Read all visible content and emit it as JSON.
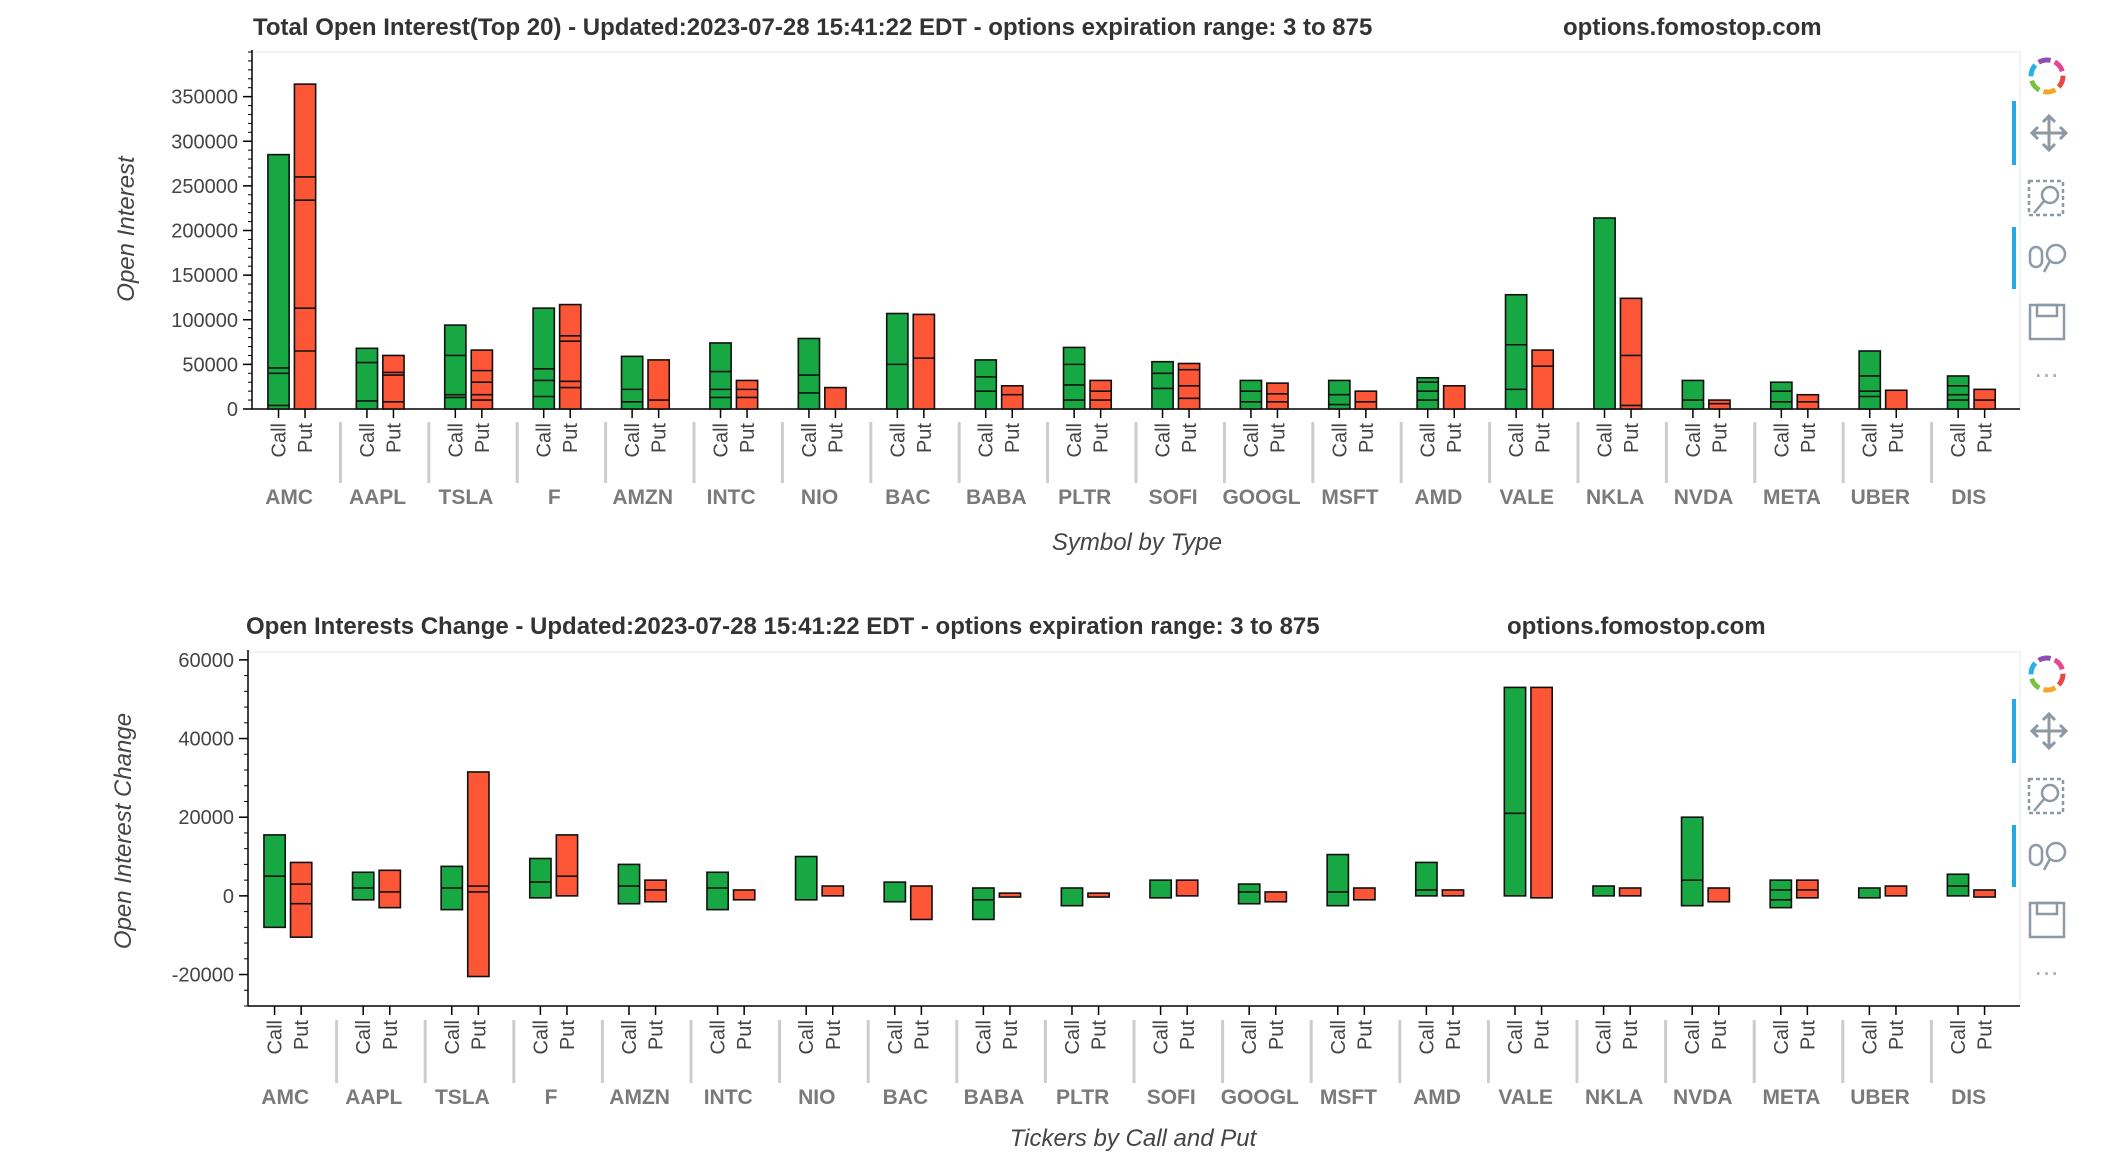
{
  "chart_data": [
    {
      "type": "bar",
      "subtype": "stacked-grouped",
      "title": "Total Open Interest(Top 20) - Updated:2023-07-28 15:41:22 EDT - options expiration range: 3 to 875",
      "site": "options.fomostop.com",
      "xlabel": "Symbol by Type",
      "ylabel": "Open Interest",
      "ylim": [
        0,
        400000
      ],
      "yticks": [
        0,
        50000,
        100000,
        150000,
        200000,
        250000,
        300000,
        350000
      ],
      "ytick_labels": [
        "0",
        "50000",
        "100000",
        "150000",
        "200000",
        "250000",
        "300000",
        "350000"
      ],
      "categories": [
        "AMC",
        "AAPL",
        "TSLA",
        "F",
        "AMZN",
        "INTC",
        "NIO",
        "BAC",
        "BABA",
        "PLTR",
        "SOFI",
        "GOOGL",
        "MSFT",
        "AMD",
        "VALE",
        "NKLA",
        "NVDA",
        "META",
        "UBER",
        "DIS"
      ],
      "subcategories": [
        "Call",
        "Put"
      ],
      "series": [
        {
          "name": "Call",
          "color": "#17a844",
          "totals": [
            285000,
            68000,
            94000,
            113000,
            59000,
            74000,
            79000,
            107000,
            55000,
            69000,
            53000,
            32000,
            32000,
            35000,
            128000,
            214000,
            32000,
            30000,
            65000,
            37000
          ],
          "segments": [
            [
              0,
              4000,
              40000,
              46000,
              285000
            ],
            [
              0,
              9000,
              52000,
              68000
            ],
            [
              0,
              13000,
              16000,
              60000,
              94000
            ],
            [
              0,
              14000,
              32000,
              45000,
              113000
            ],
            [
              0,
              8000,
              22000,
              59000
            ],
            [
              0,
              13000,
              22000,
              42000,
              74000
            ],
            [
              0,
              18000,
              38000,
              79000
            ],
            [
              0,
              50000,
              107000
            ],
            [
              0,
              20000,
              36000,
              55000
            ],
            [
              0,
              10000,
              27000,
              50000,
              69000
            ],
            [
              0,
              23000,
              40000,
              53000
            ],
            [
              0,
              8000,
              20000,
              32000
            ],
            [
              0,
              5000,
              16000,
              32000
            ],
            [
              0,
              10000,
              20000,
              30000,
              35000
            ],
            [
              0,
              22000,
              72000,
              128000
            ],
            [
              0,
              214000
            ],
            [
              0,
              10000,
              32000
            ],
            [
              0,
              8000,
              20000,
              30000
            ],
            [
              0,
              14000,
              20000,
              37000,
              65000
            ],
            [
              0,
              10000,
              16000,
              26000,
              37000
            ]
          ]
        },
        {
          "name": "Put",
          "color": "#fd5636",
          "totals": [
            364000,
            60000,
            66000,
            117000,
            55000,
            32000,
            24000,
            106000,
            26000,
            32000,
            51000,
            29000,
            20000,
            26000,
            66000,
            124000,
            10000,
            16000,
            21000,
            22000
          ],
          "segments": [
            [
              0,
              65000,
              113000,
              234000,
              260000,
              364000
            ],
            [
              0,
              8000,
              38000,
              41000,
              60000
            ],
            [
              0,
              10000,
              16000,
              30000,
              43000,
              66000
            ],
            [
              0,
              24000,
              31000,
              76000,
              82000,
              117000
            ],
            [
              0,
              10000,
              55000
            ],
            [
              0,
              13000,
              22000,
              32000
            ],
            [
              0,
              24000
            ],
            [
              0,
              57000,
              106000
            ],
            [
              0,
              16000,
              26000
            ],
            [
              0,
              10000,
              20000,
              32000
            ],
            [
              0,
              12000,
              26000,
              44000,
              51000
            ],
            [
              0,
              8000,
              17000,
              29000
            ],
            [
              0,
              8000,
              20000
            ],
            [
              0,
              26000
            ],
            [
              0,
              48000,
              66000
            ],
            [
              0,
              4000,
              60000,
              124000
            ],
            [
              0,
              6000,
              10000
            ],
            [
              0,
              8000,
              16000
            ],
            [
              0,
              21000
            ],
            [
              0,
              10000,
              22000
            ]
          ]
        }
      ]
    },
    {
      "type": "bar",
      "subtype": "stacked-grouped",
      "title": "Open Interests Change - Updated:2023-07-28 15:41:22 EDT - options expiration range: 3 to 875",
      "site": "options.fomostop.com",
      "xlabel": "Tickers by Call and Put",
      "ylabel": "Open Interest Change",
      "ylim": [
        -28000,
        62000
      ],
      "yticks": [
        -20000,
        0,
        20000,
        40000,
        60000
      ],
      "ytick_labels": [
        "-20000",
        "0",
        "20000",
        "40000",
        "60000"
      ],
      "categories": [
        "AMC",
        "AAPL",
        "TSLA",
        "F",
        "AMZN",
        "INTC",
        "NIO",
        "BAC",
        "BABA",
        "PLTR",
        "SOFI",
        "GOOGL",
        "MSFT",
        "AMD",
        "VALE",
        "NKLA",
        "NVDA",
        "META",
        "UBER",
        "DIS"
      ],
      "subcategories": [
        "Call",
        "Put"
      ],
      "series": [
        {
          "name": "Call",
          "color": "#17a844",
          "segments": [
            [
              -8000,
              5000,
              15500
            ],
            [
              -1000,
              2000,
              6000
            ],
            [
              -3500,
              2000,
              7500
            ],
            [
              -500,
              3500,
              9500
            ],
            [
              -2000,
              2500,
              8000
            ],
            [
              -3500,
              2000,
              6000
            ],
            [
              -1000,
              10000
            ],
            [
              -1500,
              3500
            ],
            [
              -6000,
              -1000,
              2000
            ],
            [
              -2500,
              2000
            ],
            [
              -500,
              4000
            ],
            [
              -2000,
              1000,
              3000
            ],
            [
              -2500,
              1000,
              10500
            ],
            [
              0,
              1500,
              8500
            ],
            [
              0,
              21000,
              53000
            ],
            [
              0,
              2500
            ],
            [
              -2500,
              4000,
              20000
            ],
            [
              -3000,
              -1000,
              1500,
              4000
            ],
            [
              -500,
              2000
            ],
            [
              0,
              2500,
              5500
            ]
          ]
        },
        {
          "name": "Put",
          "color": "#fd5636",
          "segments": [
            [
              -10500,
              -2000,
              3000,
              8500
            ],
            [
              -3000,
              1000,
              6500
            ],
            [
              -20500,
              1000,
              2500,
              31500
            ],
            [
              0,
              5000,
              15500
            ],
            [
              -1500,
              1500,
              4000
            ],
            [
              -1000,
              1500
            ],
            [
              0,
              2500
            ],
            [
              -6000,
              2500
            ],
            [
              -300,
              700
            ],
            [
              -300,
              700
            ],
            [
              0,
              4000
            ],
            [
              -1500,
              1000
            ],
            [
              -1000,
              2000
            ],
            [
              0,
              1500
            ],
            [
              -500,
              53000
            ],
            [
              0,
              2000
            ],
            [
              -1500,
              2000
            ],
            [
              -500,
              1500,
              4000
            ],
            [
              0,
              2500
            ],
            [
              -300,
              1500
            ]
          ]
        }
      ]
    }
  ]
}
